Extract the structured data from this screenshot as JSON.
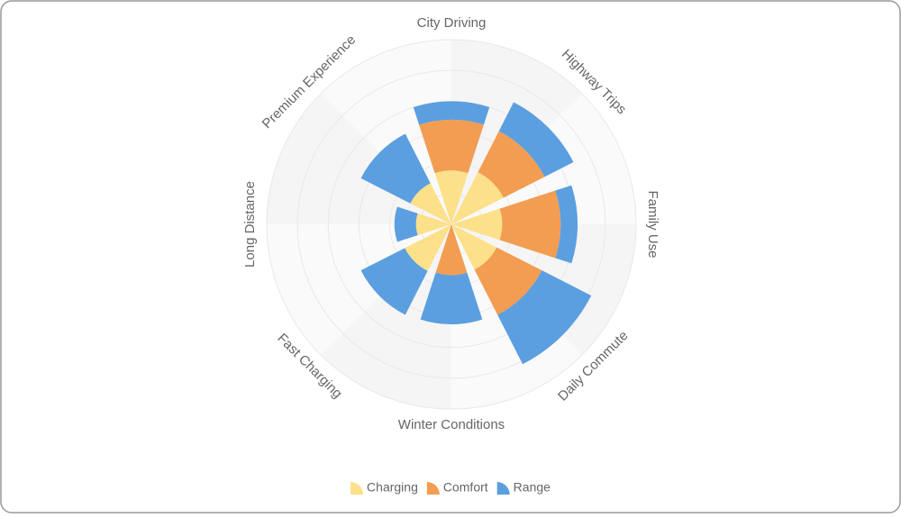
{
  "chart_data": {
    "type": "polar-stacked-bar",
    "categories": [
      "City Driving",
      "Highway Trips",
      "Family Use",
      "Daily Commute",
      "Winter Conditions",
      "Fast Charging",
      "Long Distance",
      "Premium Experience"
    ],
    "series": [
      {
        "name": "Charging",
        "color": "#fde08a",
        "values": [
          1.75,
          1.9,
          1.65,
          1.65,
          0,
          1.7,
          1.15,
          1.5
        ]
      },
      {
        "name": "Comfort",
        "color": "#f29d52",
        "values": [
          1.65,
          1.5,
          1.9,
          1.65,
          1.65,
          0,
          0,
          0
        ]
      },
      {
        "name": "Range",
        "color": "#5b9fe0",
        "values": [
          0.6,
          1.05,
          0.55,
          1.8,
          1.6,
          1.6,
          0.7,
          1.8
        ]
      }
    ],
    "rlim": [
      0,
      6
    ],
    "rticks": [
      0,
      1,
      2,
      3,
      4,
      5,
      6
    ],
    "grid": true,
    "legend": "bottom"
  }
}
